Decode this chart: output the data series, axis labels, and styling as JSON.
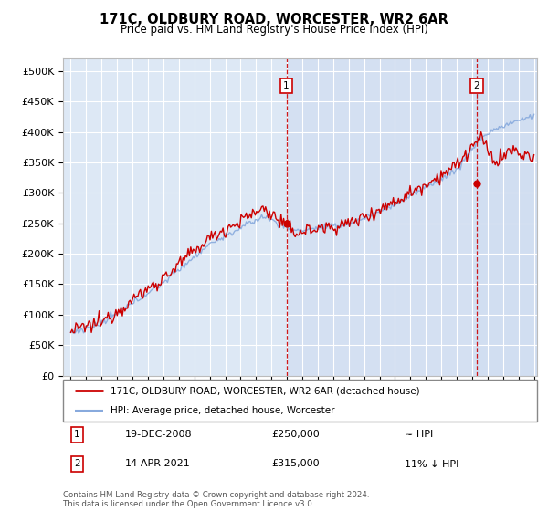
{
  "title": "171C, OLDBURY ROAD, WORCESTER, WR2 6AR",
  "subtitle": "Price paid vs. HM Land Registry's House Price Index (HPI)",
  "legend_label1": "171C, OLDBURY ROAD, WORCESTER, WR2 6AR (detached house)",
  "legend_label2": "HPI: Average price, detached house, Worcester",
  "footnote": "Contains HM Land Registry data © Crown copyright and database right 2024.\nThis data is licensed under the Open Government Licence v3.0.",
  "annotation1_date": "19-DEC-2008",
  "annotation1_price": "£250,000",
  "annotation1_hpi": "≈ HPI",
  "annotation2_date": "14-APR-2021",
  "annotation2_price": "£315,000",
  "annotation2_hpi": "11% ↓ HPI",
  "house_color": "#cc0000",
  "hpi_color": "#88aadd",
  "background_color": "#dde8f5",
  "background_highlight": "#ccdaf0",
  "grid_color": "#ffffff",
  "ylim": [
    0,
    520000
  ],
  "yticks": [
    0,
    50000,
    100000,
    150000,
    200000,
    250000,
    300000,
    350000,
    400000,
    450000,
    500000
  ],
  "vline1_x": 2008.97,
  "vline2_x": 2021.29,
  "sale1_x": 2008.97,
  "sale1_y": 250000,
  "sale2_x": 2021.29,
  "sale2_y": 315000,
  "xlim_left": 1994.5,
  "xlim_right": 2025.2
}
